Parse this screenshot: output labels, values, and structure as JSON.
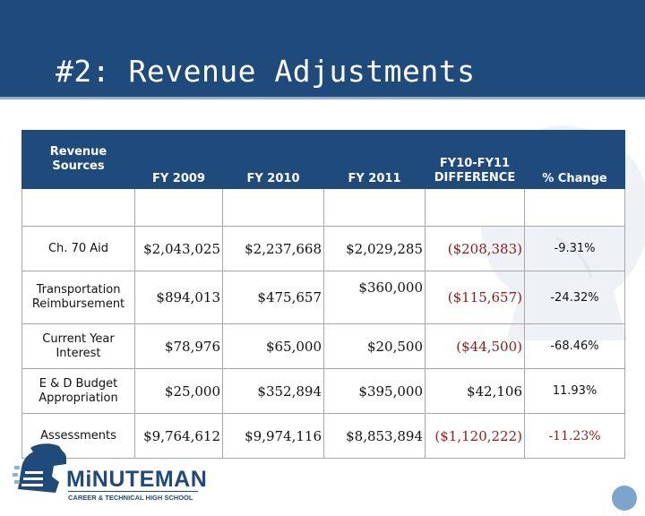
{
  "slide": {
    "title": "#2: Revenue Adjustments"
  },
  "table": {
    "headers": {
      "source": "Revenue Sources",
      "fy2009": "FY 2009",
      "fy2010": "FY 2010",
      "fy2011": "FY 2011",
      "diff_line1": "FY10-FY11",
      "diff_line2": "DIFFERENCE",
      "pct": "% Change"
    },
    "rows": [
      {
        "source": "Ch. 70 Aid",
        "fy2009": "$2,043,025",
        "fy2010": "$2,237,668",
        "fy2011": "$2,029,285",
        "diff": "($208,383)",
        "pct": "-9.31%"
      },
      {
        "source": "Transportation Reimbursement",
        "fy2009": "$894,013",
        "fy2010": "$475,657",
        "fy2011": "$360,000",
        "diff": "($115,657)",
        "pct": "-24.32%"
      },
      {
        "source": "Current Year Interest",
        "fy2009": "$78,976",
        "fy2010": "$65,000",
        "fy2011": "$20,500",
        "diff": "($44,500)",
        "pct": "-68.46%"
      },
      {
        "source": "E & D Budget Appropriation",
        "fy2009": "$25,000",
        "fy2010": "$352,894",
        "fy2011": "$395,000",
        "diff": "$42,106",
        "pct": "11.93%"
      },
      {
        "source": "Assessments",
        "fy2009": "$9,764,612",
        "fy2010": "$9,974,116",
        "fy2011": "$8,853,894",
        "diff": "($1,120,222)",
        "pct": "-11.23%"
      }
    ]
  },
  "logo": {
    "name": "MiNUTEMAN",
    "subtitle": "CAREER & TECHNICAL HIGH SCHOOL"
  },
  "colors": {
    "header_bg": "#1f4a7c",
    "negative_text": "#8b1a1a",
    "accent_light": "#8fb0cf"
  }
}
